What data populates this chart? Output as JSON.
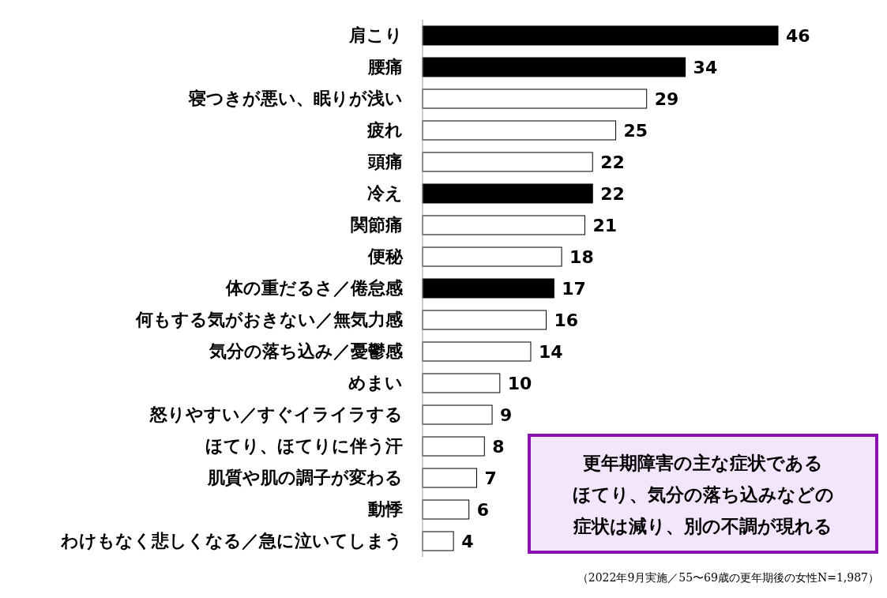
{
  "chart_data": {
    "type": "bar",
    "orientation": "horizontal",
    "data_labels": true,
    "categories": [
      "肩こり",
      "腰痛",
      "寝つきが悪い、眠りが浅い",
      "疲れ",
      "頭痛",
      "冷え",
      "関節痛",
      "便秘",
      "体の重だるさ／倦怠感",
      "何もする気がおきない／無気力感",
      "気分の落ち込み／憂鬱感",
      "めまい",
      "怒りやすい／すぐイライラする",
      "ほてり、ほてりに伴う汗",
      "肌質や肌の調子が変わる",
      "動悸",
      "わけもなく悲しくなる／急に泣いてしまう"
    ],
    "values": [
      46,
      34,
      29,
      25,
      22,
      22,
      21,
      18,
      17,
      16,
      14,
      10,
      9,
      8,
      7,
      6,
      4
    ],
    "colors": [
      "#000000",
      "#000000",
      "#ffffff",
      "#ffffff",
      "#ffffff",
      "#000000",
      "#ffffff",
      "#ffffff",
      "#000000",
      "#ffffff",
      "#ffffff",
      "#ffffff",
      "#ffffff",
      "#ffffff",
      "#ffffff",
      "#ffffff",
      "#ffffff"
    ],
    "annotations": [
      "更年期障害の主な症状である",
      "ほてり、気分の落ち込みなどの",
      "症状は減り、別の不調が現れる",
      "（2022年9月実施／55〜69歳の更年期後の女性N=1,987）"
    ]
  }
}
